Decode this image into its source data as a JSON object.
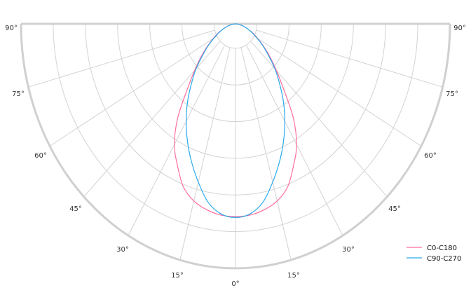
{
  "chart_data": {
    "type": "polar",
    "title": "",
    "angle_ticks": [
      "90°",
      "75°",
      "60°",
      "45°",
      "30°",
      "15°",
      "0°",
      "15°",
      "30°",
      "45°",
      "60°",
      "75°",
      "90°"
    ],
    "angle_range_deg": [
      0,
      90
    ],
    "radial_range": [
      0,
      1
    ],
    "radial_rings": [
      0.1,
      0.25,
      0.4,
      0.55,
      0.7,
      0.85,
      1.0
    ],
    "radial_tick_labels": false,
    "grid": true,
    "symmetric": true,
    "legend_position": "bottom-right",
    "angles_deg": [
      0,
      5,
      10,
      15,
      20,
      25,
      30,
      35,
      40,
      45,
      50,
      55,
      60,
      65,
      70,
      75,
      80,
      85,
      90
    ],
    "series": [
      {
        "name": "C0-C180",
        "color": "#ff6e9e",
        "values": [
          0.788,
          0.785,
          0.772,
          0.75,
          0.71,
          0.64,
          0.57,
          0.47,
          0.35,
          0.27,
          0.21,
          0.16,
          0.12,
          0.09,
          0.06,
          0.04,
          0.02,
          0.01,
          0
        ]
      },
      {
        "name": "C90-C270",
        "color": "#29aaeb",
        "values": [
          0.792,
          0.78,
          0.74,
          0.67,
          0.6,
          0.53,
          0.46,
          0.39,
          0.32,
          0.26,
          0.2,
          0.155,
          0.115,
          0.085,
          0.06,
          0.04,
          0.02,
          0.01,
          0
        ]
      }
    ],
    "grid_color": "#d3d3d3"
  }
}
